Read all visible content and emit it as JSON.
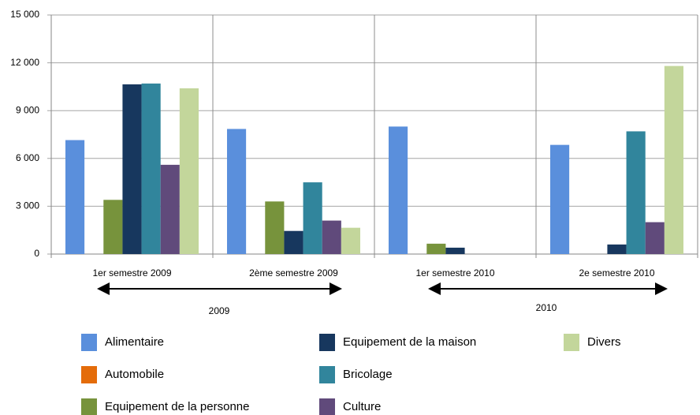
{
  "chart_data": {
    "type": "bar",
    "categories": [
      "1er semestre 2009",
      "2ème semestre 2009",
      "1er semestre 2010",
      "2e semestre 2010"
    ],
    "series": [
      {
        "name": "Alimentaire",
        "color": "#5a8fdc",
        "values": [
          7150,
          7850,
          8000,
          6850
        ]
      },
      {
        "name": "Automobile",
        "color": "#e46c0a",
        "values": [
          0,
          0,
          0,
          0
        ]
      },
      {
        "name": "Equipement de la personne",
        "color": "#77933c",
        "values": [
          3400,
          3300,
          650,
          0
        ]
      },
      {
        "name": "Equipement de la maison",
        "color": "#17375e",
        "values": [
          10650,
          1450,
          400,
          600
        ]
      },
      {
        "name": "Bricolage",
        "color": "#31859c",
        "values": [
          10700,
          4500,
          0,
          7700
        ]
      },
      {
        "name": "Culture",
        "color": "#604a7b",
        "values": [
          5600,
          2100,
          0,
          2000
        ]
      },
      {
        "name": "Divers",
        "color": "#c3d69b",
        "values": [
          10400,
          1650,
          0,
          11800
        ]
      }
    ],
    "year_groups": [
      "2009",
      "2010"
    ],
    "ylim": [
      0,
      15000
    ],
    "yticks": [
      {
        "value": 0,
        "label": "0"
      },
      {
        "value": 3000,
        "label": "3 000"
      },
      {
        "value": 6000,
        "label": "6 000"
      },
      {
        "value": 9000,
        "label": "9 000"
      },
      {
        "value": 12000,
        "label": "12 000"
      },
      {
        "value": 15000,
        "label": "15 000"
      }
    ],
    "grid": true
  }
}
